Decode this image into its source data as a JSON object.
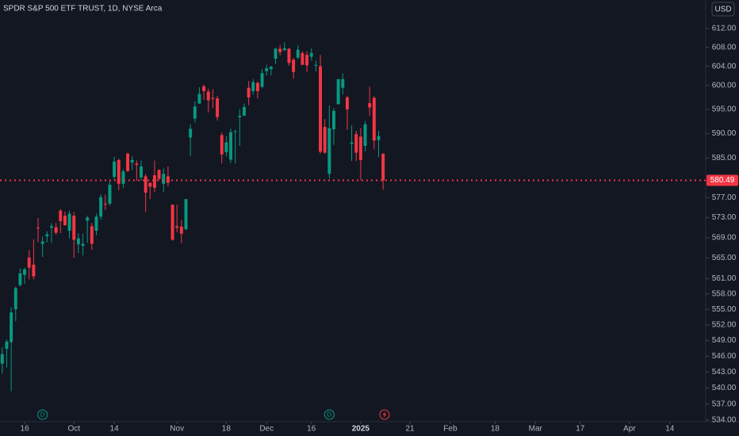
{
  "chart_data": {
    "type": "candlestick",
    "title": "SPDR S&P 500 ETF TRUST, 1D, NYSE Arca",
    "currency": "USD",
    "log_scale": true,
    "grid": false,
    "up_color": "#089981",
    "down_color": "#f23645",
    "open": [
      544.6,
      547.4,
      548.7,
      555.0,
      559.7,
      561.7,
      565.1,
      563.7,
      571.0,
      567.8,
      569.3,
      571.0,
      571.1,
      574.4,
      573.4,
      570.4,
      573.4,
      567.7,
      567.4,
      572.4,
      571.3,
      570.4,
      573.2,
      575.8,
      575.8,
      581.2,
      584.6,
      579.8,
      585.9,
      584.1,
      583.9,
      581.1,
      581.3,
      579.98,
      581.5,
      582.6,
      579.8,
      581.3,
      575.6,
      571.3,
      571.2,
      570.7,
      589.2,
      593.1,
      596.2,
      599.8,
      598.7,
      597.4,
      597.3,
      589.7,
      586.2,
      584.7,
      590.4,
      593.4,
      593.7,
      599.5,
      598.8,
      600.5,
      599.7,
      602.97,
      603.4,
      605.6,
      607.7,
      607.4,
      607.7,
      605.4,
      605.8,
      606.8,
      606.4,
      606.0,
      604.2,
      604.0,
      591.4,
      581.8,
      590.9,
      596.1,
      599.5,
      597.5,
      587.9,
      589.9,
      589.4,
      587.5,
      596.3,
      597.4,
      588.7,
      585.9
    ],
    "high": [
      547.7,
      549.2,
      555.4,
      559.4,
      563.0,
      563.1,
      566.6,
      568.7,
      572.9,
      569.3,
      570.3,
      571.9,
      571.9,
      574.7,
      574.2,
      574.4,
      574.1,
      569.9,
      569.8,
      573.4,
      571.96,
      573.8,
      577.7,
      577.6,
      580.3,
      585.3,
      584.9,
      582.8,
      586.1,
      585.4,
      584.5,
      584.5,
      581.8,
      580.1,
      584.5,
      582.7,
      582.9,
      583.3,
      575.6,
      575.6,
      572.5,
      576.7,
      591.9,
      596.7,
      599.6,
      600.2,
      599.3,
      599.2,
      597.8,
      590.2,
      589.5,
      591.0,
      590.8,
      595.1,
      596.2,
      600.9,
      601.3,
      600.85,
      603.4,
      604.3,
      604.1,
      607.9,
      608.5,
      609.1,
      607.9,
      605.8,
      608.4,
      607.2,
      607.2,
      607.8,
      605.2,
      606.4,
      593.0,
      595.8,
      595.3,
      601.3,
      602.5,
      597.8,
      591.7,
      590.6,
      591.1,
      592.6,
      599.7,
      597.75,
      590.6,
      585.95
    ],
    "low": [
      542.7,
      543.9,
      539.4,
      552.7,
      559.4,
      559.9,
      560.8,
      560.8,
      568.1,
      565.2,
      568.1,
      568.0,
      569.6,
      569.9,
      571.4,
      568.9,
      565.0,
      566.0,
      565.5,
      568.0,
      566.6,
      569.5,
      572.6,
      574.5,
      575.4,
      580.6,
      578.5,
      578.9,
      582.2,
      582.6,
      580.4,
      580.4,
      574.1,
      576.7,
      578.1,
      580.5,
      578.1,
      579.3,
      568.4,
      570.1,
      567.9,
      570.5,
      585.4,
      592.3,
      596.2,
      597.0,
      594.4,
      595.3,
      592.7,
      583.9,
      585.3,
      584.0,
      583.9,
      587.5,
      593.6,
      595.9,
      598.1,
      597.3,
      599.4,
      602.1,
      602.1,
      604.5,
      606.3,
      607.2,
      604.1,
      601.4,
      605.5,
      604.3,
      602.8,
      605.2,
      602.9,
      585.9,
      585.9,
      580.9,
      587.7,
      596.0,
      598.1,
      590.8,
      584.4,
      584.4,
      580.5,
      586.4,
      593.6,
      586.8,
      585.2,
      578.6
    ],
    "close": [
      546.4,
      548.8,
      554.4,
      559.1,
      562.0,
      562.8,
      563.1,
      561.4,
      570.98,
      568.25,
      569.7,
      571.3,
      570.0,
      572.3,
      571.5,
      573.8,
      568.6,
      568.9,
      567.8,
      573.0,
      567.8,
      573.2,
      577.1,
      575.6,
      579.6,
      584.3,
      579.8,
      582.3,
      582.35,
      584.6,
      583.6,
      583.3,
      578.0,
      579.2,
      579.0,
      580.8,
      581.8,
      580.0,
      568.6,
      571.0,
      569.8,
      576.7,
      591.0,
      595.6,
      598.2,
      598.8,
      596.9,
      597.2,
      593.4,
      585.75,
      588.2,
      590.3,
      590.5,
      593.7,
      595.5,
      597.5,
      600.65,
      598.8,
      602.55,
      603.6,
      603.9,
      607.7,
      607.0,
      607.8,
      604.7,
      602.8,
      607.5,
      604.3,
      604.2,
      606.8,
      604.3,
      586.3,
      586.1,
      591.15,
      594.7,
      601.3,
      601.3,
      595.0,
      588.2,
      586.1,
      584.6,
      591.95,
      595.4,
      588.6,
      589.5,
      580.49
    ],
    "last_price": 580.49,
    "events": [
      {
        "label": "D",
        "index": 9
      },
      {
        "label": "D",
        "index": 73
      }
    ],
    "xlim": [
      -0.5,
      157
    ],
    "xticks": [
      {
        "value": 5,
        "label": "16"
      },
      {
        "value": 16,
        "label": "Oct"
      },
      {
        "value": 25,
        "label": "14"
      },
      {
        "value": 39,
        "label": "Nov"
      },
      {
        "value": 50,
        "label": "18"
      },
      {
        "value": 59,
        "label": "Dec"
      },
      {
        "value": 69,
        "label": "16"
      },
      {
        "value": 80,
        "label": "2025"
      },
      {
        "value": 91,
        "label": "21"
      },
      {
        "value": 100,
        "label": "Feb"
      },
      {
        "value": 110,
        "label": "18"
      },
      {
        "value": 119,
        "label": "Mar"
      },
      {
        "value": 129,
        "label": "17"
      },
      {
        "value": 140,
        "label": "Apr"
      },
      {
        "value": 149,
        "label": "14"
      }
    ],
    "ylim": [
      533.7,
      618.1
    ],
    "yticks": [
      {
        "value": 612,
        "label": "612.00"
      },
      {
        "value": 608,
        "label": "608.00"
      },
      {
        "value": 604,
        "label": "604.00"
      },
      {
        "value": 600,
        "label": "600.00"
      },
      {
        "value": 595,
        "label": "595.00"
      },
      {
        "value": 590,
        "label": "590.00"
      },
      {
        "value": 585,
        "label": "585.00"
      },
      {
        "value": 577,
        "label": "577.00"
      },
      {
        "value": 573,
        "label": "573.00"
      },
      {
        "value": 569,
        "label": "569.00"
      },
      {
        "value": 565,
        "label": "565.00"
      },
      {
        "value": 561,
        "label": "561.00"
      },
      {
        "value": 558,
        "label": "558.00"
      },
      {
        "value": 555,
        "label": "555.00"
      },
      {
        "value": 552,
        "label": "552.00"
      },
      {
        "value": 549,
        "label": "549.00"
      },
      {
        "value": 546,
        "label": "546.00"
      },
      {
        "value": 543,
        "label": "543.00"
      },
      {
        "value": 540,
        "label": "540.00"
      },
      {
        "value": 537,
        "label": "537.00"
      },
      {
        "value": 534,
        "label": "534.00"
      }
    ]
  }
}
